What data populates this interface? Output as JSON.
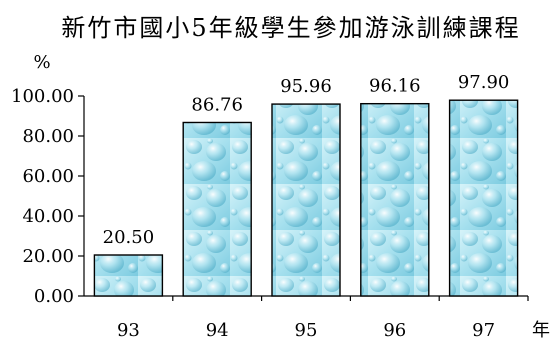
{
  "chart_data": {
    "type": "bar",
    "title": "新竹市國小5年級學生參加游泳訓練課程",
    "ylabel": "%",
    "xlabel": "年",
    "categories": [
      "93",
      "94",
      "95",
      "96",
      "97"
    ],
    "values": [
      20.5,
      86.76,
      95.96,
      96.16,
      97.9
    ],
    "data_labels": [
      "20.50",
      "86.76",
      "95.96",
      "96.16",
      "97.90"
    ],
    "ylim": [
      0,
      100
    ],
    "yticks": [
      0,
      20,
      40,
      60,
      80,
      100
    ],
    "ytick_labels": [
      "0.00",
      "20.00",
      "40.00",
      "60.00",
      "80.00",
      "100.00"
    ],
    "grid": false,
    "legend": "none",
    "bar_fill": "water-droplet texture",
    "colors": {
      "bar_light": "#c8eef6",
      "bar_mid": "#8fd6e8",
      "bar_dark": "#5bbcd4",
      "bar_edge": "#000000"
    }
  }
}
